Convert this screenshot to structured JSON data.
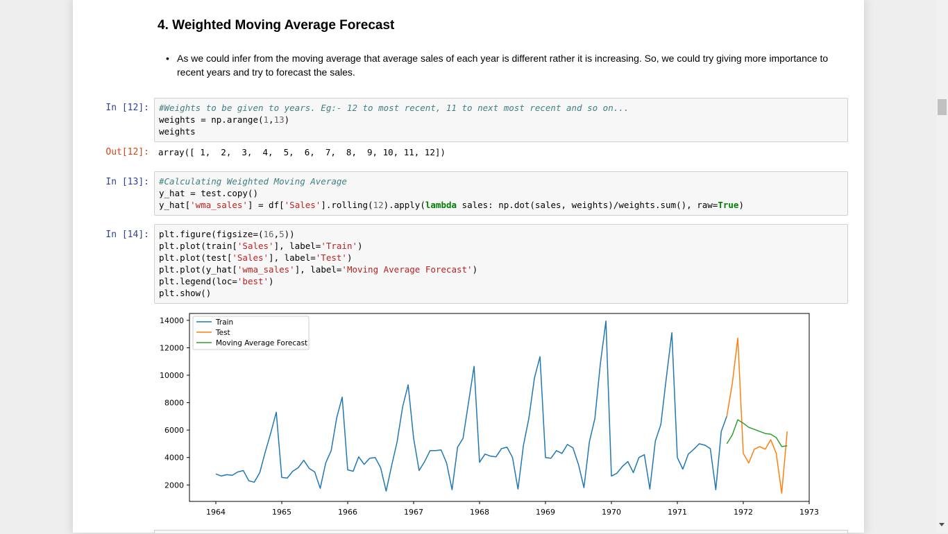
{
  "markdown": {
    "heading": "4. Weighted Moving Average Forecast",
    "bullet": "As we could infer from the moving average that average sales of each year is different rather it is increasing. So, we could try giving more importance to recent years and try to forecast the sales."
  },
  "cells": [
    {
      "prompt": "In [12]:",
      "lines": [
        [
          {
            "t": "#Weights to be given to years. Eg:- 12 to most recent, 11 to next most recent and so on...",
            "c": "cm"
          }
        ],
        [
          {
            "t": "weights = np.arange("
          },
          {
            "t": "1",
            "c": "nm"
          },
          {
            "t": ","
          },
          {
            "t": "13",
            "c": "nm"
          },
          {
            "t": ")"
          }
        ],
        [
          {
            "t": "weights"
          }
        ]
      ],
      "out_prompt": "Out[12]:",
      "output": "array([ 1,  2,  3,  4,  5,  6,  7,  8,  9, 10, 11, 12])"
    },
    {
      "prompt": "In [13]:",
      "lines": [
        [
          {
            "t": "#Calculating Weighted Moving Average",
            "c": "cm"
          }
        ],
        [
          {
            "t": "y_hat = test.copy()"
          }
        ],
        [
          {
            "t": "y_hat["
          },
          {
            "t": "'wma_sales'",
            "c": "st"
          },
          {
            "t": "] = df["
          },
          {
            "t": "'Sales'",
            "c": "st"
          },
          {
            "t": "].rolling("
          },
          {
            "t": "12",
            "c": "nm"
          },
          {
            "t": ").apply("
          },
          {
            "t": "lambda",
            "c": "kw"
          },
          {
            "t": " sales: np.dot(sales, weights)/weights.sum(), raw="
          },
          {
            "t": "True",
            "c": "kw"
          },
          {
            "t": ")"
          }
        ]
      ]
    },
    {
      "prompt": "In [14]:",
      "lines": [
        [
          {
            "t": "plt.figure(figsize=("
          },
          {
            "t": "16",
            "c": "nm"
          },
          {
            "t": ","
          },
          {
            "t": "5",
            "c": "nm"
          },
          {
            "t": "))"
          }
        ],
        [
          {
            "t": "plt.plot(train["
          },
          {
            "t": "'Sales'",
            "c": "st"
          },
          {
            "t": "], label="
          },
          {
            "t": "'Train'",
            "c": "st"
          },
          {
            "t": ")"
          }
        ],
        [
          {
            "t": "plt.plot(test["
          },
          {
            "t": "'Sales'",
            "c": "st"
          },
          {
            "t": "], label="
          },
          {
            "t": "'Test'",
            "c": "st"
          },
          {
            "t": ")"
          }
        ],
        [
          {
            "t": "plt.plot(y_hat["
          },
          {
            "t": "'wma_sales'",
            "c": "st"
          },
          {
            "t": "], label="
          },
          {
            "t": "'Moving Average Forecast'",
            "c": "st"
          },
          {
            "t": ")"
          }
        ],
        [
          {
            "t": "plt.legend(loc="
          },
          {
            "t": "'best'",
            "c": "st"
          },
          {
            "t": ")"
          }
        ],
        [
          {
            "t": "plt.show()"
          }
        ]
      ]
    }
  ],
  "chart_data": {
    "type": "line",
    "title": "",
    "xlabel": "",
    "ylabel": "",
    "xlim": [
      1963.6,
      1973.0
    ],
    "ylim": [
      800,
      14500
    ],
    "x_ticks": [
      1964,
      1965,
      1966,
      1967,
      1968,
      1969,
      1970,
      1971,
      1972,
      1973
    ],
    "y_ticks": [
      2000,
      4000,
      6000,
      8000,
      10000,
      12000,
      14000
    ],
    "grid": false,
    "legend_placement": "top-left",
    "series": [
      {
        "name": "Train",
        "color": "#1f77b4",
        "start": 1964.0,
        "step": 0.08333,
        "values": [
          2800,
          2650,
          2750,
          2700,
          2950,
          3050,
          2300,
          2200,
          2900,
          4400,
          5800,
          7300,
          2550,
          2500,
          3000,
          3250,
          3800,
          3200,
          2950,
          1750,
          3600,
          4500,
          6900,
          8400,
          3100,
          3000,
          4050,
          3500,
          3950,
          4000,
          3250,
          1550,
          3400,
          5150,
          7700,
          9300,
          5400,
          3050,
          3700,
          4500,
          4500,
          4550,
          3600,
          1650,
          4750,
          5400,
          8050,
          10650,
          3650,
          4250,
          4100,
          4050,
          4650,
          4750,
          4000,
          1700,
          4900,
          6900,
          9800,
          11350,
          4000,
          3950,
          4500,
          4300,
          4950,
          4700,
          3500,
          1800,
          5150,
          6850,
          10850,
          13950,
          2650,
          2850,
          3350,
          3700,
          2900,
          4000,
          4200,
          1700,
          5200,
          6400,
          9800,
          13100,
          4000,
          3150,
          4250,
          4600,
          5000,
          4900,
          4650,
          1650,
          5900,
          7000
        ]
      },
      {
        "name": "Test",
        "color": "#ff7f0e",
        "start": 1971.75,
        "step": 0.08333,
        "values": [
          7000,
          9400,
          12700,
          4300,
          3600,
          4600,
          4800,
          4600,
          5300,
          4300,
          1400,
          5900
        ]
      },
      {
        "name": "Moving Average Forecast",
        "color": "#2ca02c",
        "start": 1971.75,
        "step": 0.08333,
        "values": [
          5000,
          5650,
          6750,
          6500,
          6200,
          6050,
          5900,
          5750,
          5700,
          5450,
          4800,
          4850
        ]
      }
    ]
  }
}
